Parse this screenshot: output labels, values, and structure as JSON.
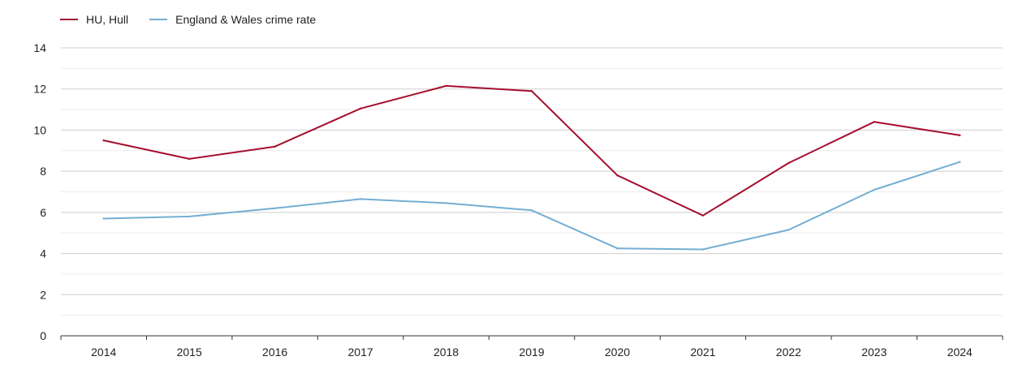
{
  "chart_data": {
    "type": "line",
    "title": "",
    "xlabel": "",
    "ylabel": "",
    "categories": [
      "2014",
      "2015",
      "2016",
      "2017",
      "2018",
      "2019",
      "2020",
      "2021",
      "2022",
      "2023",
      "2024"
    ],
    "ylim": [
      0,
      14
    ],
    "yticks": [
      0,
      2,
      4,
      6,
      8,
      10,
      12,
      14
    ],
    "grid": true,
    "legend_position": "top-left",
    "series": [
      {
        "name": "HU, Hull",
        "color": "#a50f2d",
        "values": [
          9.5,
          8.6,
          9.2,
          11.05,
          12.15,
          11.9,
          7.8,
          5.85,
          8.4,
          10.4,
          9.75
        ]
      },
      {
        "name": "England & Wales crime rate",
        "color": "#74aed3",
        "values": [
          5.7,
          5.8,
          6.2,
          6.65,
          6.45,
          6.1,
          4.25,
          4.2,
          5.15,
          7.1,
          8.45
        ]
      }
    ]
  }
}
